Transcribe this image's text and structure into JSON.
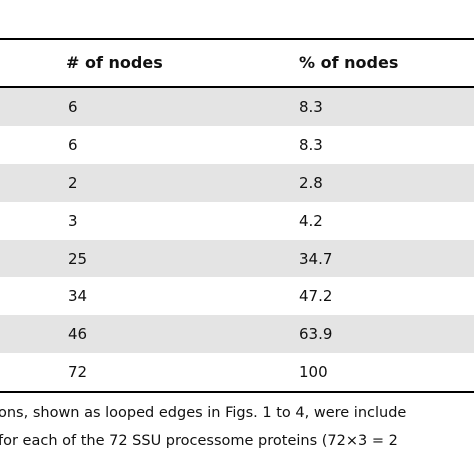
{
  "table": {
    "headers": [
      "# of nodes",
      "% of nodes"
    ],
    "rows": [
      {
        "nodes": "6",
        "percent": "8.3",
        "shaded": true
      },
      {
        "nodes": "6",
        "percent": "8.3",
        "shaded": false
      },
      {
        "nodes": "2",
        "percent": "2.8",
        "shaded": true
      },
      {
        "nodes": "3",
        "percent": "4.2",
        "shaded": false
      },
      {
        "nodes": "25",
        "percent": "34.7",
        "shaded": true
      },
      {
        "nodes": "34",
        "percent": "47.2",
        "shaded": false
      },
      {
        "nodes": "46",
        "percent": "63.9",
        "shaded": true
      },
      {
        "nodes": "72",
        "percent": "100",
        "shaded": false
      }
    ]
  },
  "footnote": {
    "line1": "ons, shown as looped edges in Figs. 1 to 4, were include",
    "line2": "for each of the 72 SSU processome proteins (72×3 = 2"
  },
  "colors": {
    "shaded_row": "#e4e4e4",
    "rule": "#000000"
  }
}
